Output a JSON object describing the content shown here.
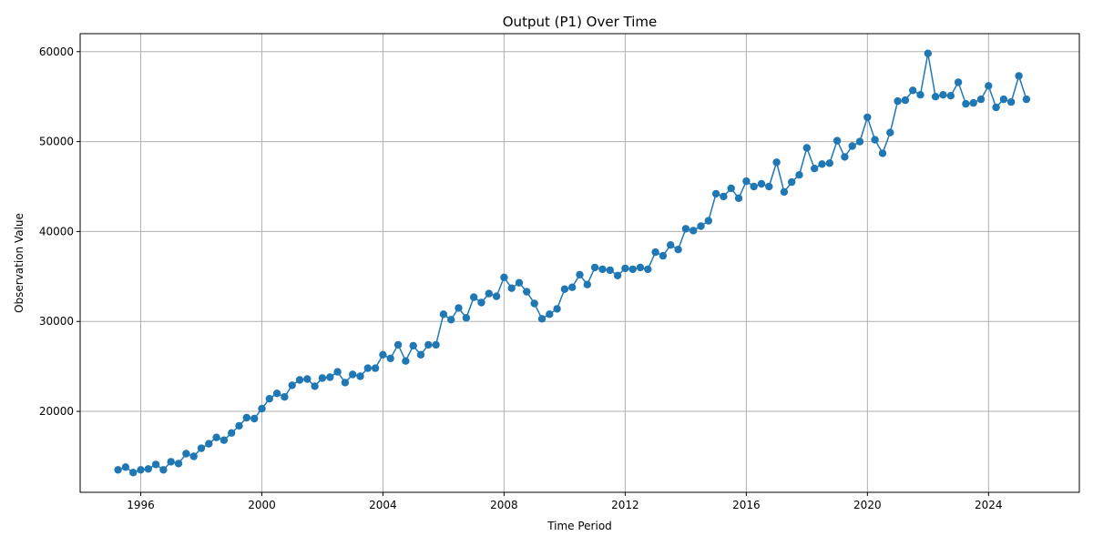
{
  "chart_data": {
    "type": "line",
    "title": "Output (P1) Over Time",
    "xlabel": "Time Period",
    "ylabel": "Observation Value",
    "xlim": [
      "1994-01-01",
      "2026-12-31"
    ],
    "ylim": [
      11000,
      62000
    ],
    "x_ticks": [
      "1996",
      "2000",
      "2004",
      "2008",
      "2012",
      "2016",
      "2020",
      "2024"
    ],
    "y_ticks": [
      20000,
      30000,
      40000,
      50000,
      60000
    ],
    "y_tick_labels": [
      "20000",
      "30000",
      "40000",
      "50000",
      "60000"
    ],
    "grid": true,
    "marker": "circle",
    "colors": {
      "series": "#1f77b4",
      "grid": "#b0b0b0",
      "axis": "#000000"
    },
    "series": [
      {
        "x": [
          "1995-04",
          "1995-07",
          "1995-10",
          "1996-01",
          "1996-04",
          "1996-07",
          "1996-10",
          "1997-01",
          "1997-04",
          "1997-07",
          "1997-10",
          "1998-01",
          "1998-04",
          "1998-07",
          "1998-10",
          "1999-01",
          "1999-04",
          "1999-07",
          "1999-10",
          "2000-01",
          "2000-04",
          "2000-07",
          "2000-10",
          "2001-01",
          "2001-04",
          "2001-07",
          "2001-10",
          "2002-01",
          "2002-04",
          "2002-07",
          "2002-10",
          "2003-01",
          "2003-04",
          "2003-07",
          "2003-10",
          "2004-01",
          "2004-04",
          "2004-07",
          "2004-10",
          "2005-01",
          "2005-04",
          "2005-07",
          "2005-10",
          "2006-01",
          "2006-04",
          "2006-07",
          "2006-10",
          "2007-01",
          "2007-04",
          "2007-07",
          "2007-10",
          "2008-01",
          "2008-04",
          "2008-07",
          "2008-10",
          "2009-01",
          "2009-04",
          "2009-07",
          "2009-10",
          "2010-01",
          "2010-04",
          "2010-07",
          "2010-10",
          "2011-01",
          "2011-04",
          "2011-07",
          "2011-10",
          "2012-01",
          "2012-04",
          "2012-07",
          "2012-10",
          "2013-01",
          "2013-04",
          "2013-07",
          "2013-10",
          "2014-01",
          "2014-04",
          "2014-07",
          "2014-10",
          "2015-01",
          "2015-04",
          "2015-07",
          "2015-10",
          "2016-01",
          "2016-04",
          "2016-07",
          "2016-10",
          "2017-01",
          "2017-04",
          "2017-07",
          "2017-10",
          "2018-01",
          "2018-04",
          "2018-07",
          "2018-10",
          "2019-01",
          "2019-04",
          "2019-07",
          "2019-10",
          "2020-01",
          "2020-04",
          "2020-07",
          "2020-10",
          "2021-01",
          "2021-04",
          "2021-07",
          "2021-10",
          "2022-01",
          "2022-04",
          "2022-07",
          "2022-10",
          "2023-01",
          "2023-04",
          "2023-07",
          "2023-10",
          "2024-01",
          "2024-04",
          "2024-07",
          "2024-10",
          "2025-01",
          "2025-04"
        ],
        "values": [
          13500,
          13800,
          13200,
          13500,
          13600,
          14100,
          13500,
          14400,
          14200,
          15300,
          15000,
          15900,
          16400,
          17100,
          16800,
          17600,
          18400,
          19300,
          19200,
          20300,
          21400,
          22000,
          21600,
          22900,
          23500,
          23600,
          22800,
          23700,
          23800,
          24400,
          23200,
          24100,
          23900,
          24800,
          24800,
          26300,
          25900,
          27400,
          25600,
          27300,
          26300,
          27400,
          27400,
          30800,
          30200,
          31500,
          30400,
          32700,
          32100,
          33100,
          32800,
          34900,
          33700,
          34300,
          33300,
          32000,
          30300,
          30800,
          31400,
          33600,
          33800,
          35200,
          34100,
          36000,
          35800,
          35700,
          35100,
          35900,
          35800,
          36000,
          35800,
          37700,
          37300,
          38500,
          38000,
          40300,
          40100,
          40600,
          41200,
          44200,
          43900,
          44800,
          43700,
          45600,
          45000,
          45300,
          45000,
          47700,
          44400,
          45500,
          46300,
          49300,
          47000,
          47500,
          47600,
          50100,
          48300,
          49500,
          50000,
          52700,
          50200,
          48700,
          51000,
          54500,
          54600,
          55700,
          55200,
          59800,
          55000,
          55200,
          55100,
          56600,
          54200,
          54300,
          54700,
          56200,
          53800,
          54700,
          54400,
          57300,
          54700
        ]
      }
    ]
  }
}
